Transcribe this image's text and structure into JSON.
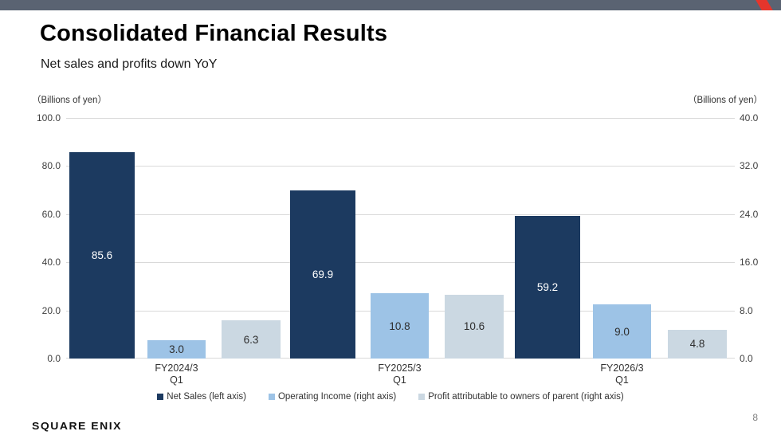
{
  "header": {
    "title": "Consolidated Financial Results",
    "subtitle": "Net sales and profits down YoY"
  },
  "colors": {
    "topbar": "#5a6372",
    "topbar_accent": "#e5352c",
    "gridline": "#d9d9d9",
    "net_sales": "#1c3a60",
    "operating_income": "#9dc3e6",
    "profit": "#cbd8e2"
  },
  "chart_data": {
    "type": "bar",
    "title": "",
    "categories": [
      [
        "FY2024/3",
        "Q1"
      ],
      [
        "FY2025/3",
        "Q1"
      ],
      [
        "FY2026/3",
        "Q1"
      ]
    ],
    "series": [
      {
        "name": "Net Sales (left axis)",
        "axis": "left",
        "color": "#1c3a60",
        "label_color": "#ffffff",
        "values": [
          85.6,
          69.9,
          59.2
        ]
      },
      {
        "name": "Operating Income (right axis)",
        "axis": "right",
        "color": "#9dc3e6",
        "label_color": "#2e2e2e",
        "values": [
          3.0,
          10.8,
          9.0
        ]
      },
      {
        "name": "Profit attributable to owners of parent (right axis)",
        "axis": "right",
        "color": "#cbd8e2",
        "label_color": "#2e2e2e",
        "values": [
          6.3,
          10.6,
          4.8
        ]
      }
    ],
    "left_axis": {
      "caption": "（Billions of yen）",
      "ticks": [
        0,
        20,
        40,
        60,
        80,
        100
      ],
      "max": 100
    },
    "right_axis": {
      "caption": "（Billions of yen）",
      "ticks": [
        0,
        8,
        16,
        24,
        32,
        40
      ],
      "max": 40
    },
    "grid": true,
    "legend_position": "bottom"
  },
  "footer": {
    "logo_text": "SQUARE ENIX",
    "page_number": "8"
  }
}
